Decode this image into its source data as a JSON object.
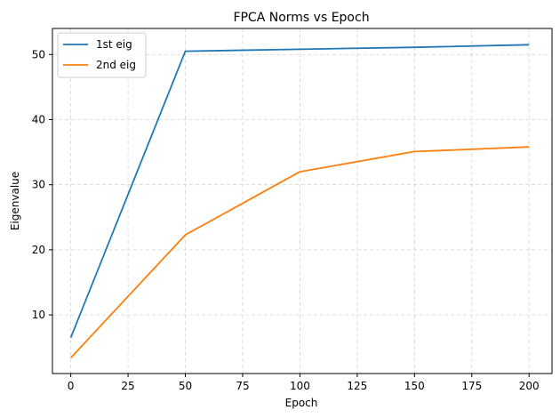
{
  "chart_data": {
    "type": "line",
    "title": "FPCA Norms vs Epoch",
    "xlabel": "Epoch",
    "ylabel": "Eigenvalue",
    "x": [
      0,
      50,
      100,
      150,
      200
    ],
    "xlim": [
      -8,
      210
    ],
    "ylim": [
      1,
      54
    ],
    "xticks": [
      0,
      25,
      50,
      75,
      100,
      125,
      150,
      175,
      200
    ],
    "yticks": [
      10,
      20,
      30,
      40,
      50
    ],
    "grid": true,
    "legend_position": "top-left",
    "series": [
      {
        "name": "1st eig",
        "color": "#1f77b4",
        "values": [
          6.5,
          50.5,
          50.8,
          51.1,
          51.5
        ]
      },
      {
        "name": "2nd eig",
        "color": "#ff7f0e",
        "values": [
          3.4,
          22.3,
          32.0,
          35.1,
          35.8
        ]
      }
    ]
  }
}
